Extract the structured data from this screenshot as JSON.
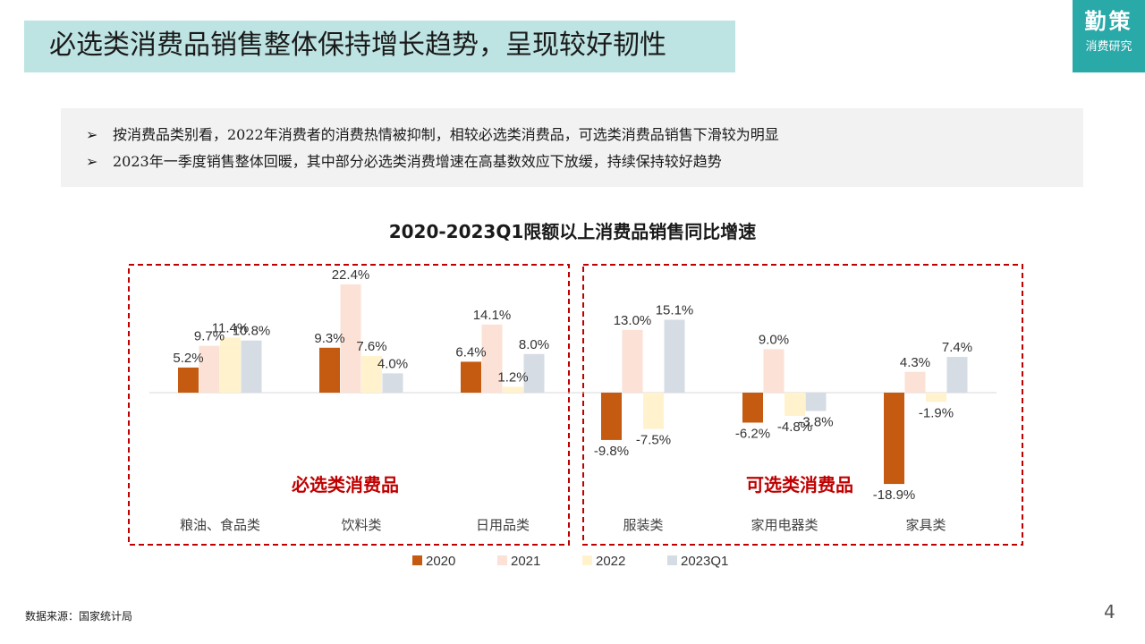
{
  "header": {
    "title": "必选类消费品销售整体保持增长趋势，呈现较好韧性",
    "brand_main": "勤策",
    "brand_sub": "消费研究"
  },
  "bullets": [
    "按消费品类别看，2022年消费者的消费热情被抑制，相较必选类消费品，可选类消费品销售下滑较为明显",
    "2023年一季度销售整体回暖，其中部分必选类消费增速在高基数效应下放缓，持续保持较好趋势"
  ],
  "chart_data": {
    "type": "bar",
    "title": "2020-2023Q1限额以上消费品销售同比增速",
    "categories": [
      "粮油、食品类",
      "饮料类",
      "日用品类",
      "服装类",
      "家用电器类",
      "家具类"
    ],
    "series": [
      {
        "name": "2020",
        "color": "#c55a11",
        "values": [
          5.2,
          9.3,
          6.4,
          -9.8,
          -6.2,
          -18.9
        ],
        "labels": [
          "5.2%",
          "9.3%",
          "6.4%",
          "-9.8%",
          "-6.2%",
          "-18.9%"
        ]
      },
      {
        "name": "2021",
        "color": "#fbe1d6",
        "values": [
          9.7,
          22.4,
          14.1,
          13.0,
          9.0,
          4.3
        ],
        "labels": [
          "9.7%",
          "22.4%",
          "14.1%",
          "13.0%",
          "9.0%",
          "4.3%"
        ]
      },
      {
        "name": "2022",
        "color": "#fff2cc",
        "values": [
          11.4,
          7.6,
          1.2,
          -7.5,
          -4.8,
          -1.9
        ],
        "labels": [
          "11.4%",
          "7.6%",
          "1.2%",
          "-7.5%",
          "-4.8%",
          "-1.9%"
        ]
      },
      {
        "name": "2023Q1",
        "color": "#d6dce4",
        "values": [
          10.8,
          4.0,
          8.0,
          15.1,
          -3.8,
          7.4
        ],
        "labels": [
          "10.8%",
          "4.0%",
          "8.0%",
          "15.1%",
          "-3.8%",
          "7.4%"
        ]
      }
    ],
    "groups": [
      {
        "label": "必选类消费品",
        "categories": [
          "粮油、食品类",
          "饮料类",
          "日用品类"
        ]
      },
      {
        "label": "可选类消费品",
        "categories": [
          "服装类",
          "家用电器类",
          "家具类"
        ]
      }
    ],
    "group_label_color": "#c00000",
    "border_color": "#c00000",
    "legend_position": "bottom",
    "grid": false
  },
  "footer": {
    "source": "数据来源：国家统计局",
    "page": "4"
  }
}
